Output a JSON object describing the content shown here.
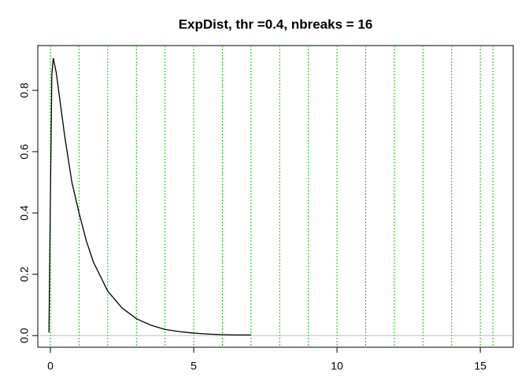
{
  "chart_data": {
    "type": "line",
    "title": "ExpDist, thr =0.4, nbreaks = 16",
    "series": [
      {
        "color": "#000000",
        "x": [
          -0.05,
          0,
          0.05,
          0.1,
          0.2,
          0.3,
          0.5,
          0.75,
          1,
          1.25,
          1.5,
          2,
          2.5,
          3,
          3.5,
          4,
          4.5,
          5,
          5.5,
          6,
          6.5,
          7
        ],
        "values": [
          0.01,
          0.45,
          0.85,
          0.905,
          0.86,
          0.79,
          0.65,
          0.5,
          0.4,
          0.31,
          0.24,
          0.145,
          0.09,
          0.055,
          0.034,
          0.02,
          0.013,
          0.008,
          0.005,
          0.003,
          0.002,
          0.002
        ]
      }
    ],
    "breaks": [
      0,
      1,
      2,
      3,
      4,
      5,
      6,
      7,
      8,
      9,
      10,
      11,
      12,
      13,
      14,
      15,
      15.44
    ],
    "break_color": "#00cc00",
    "hline": 0,
    "hline_color": "#bebebe",
    "xlim": [
      -0.44,
      16.15
    ],
    "ylim": [
      -0.038,
      0.946
    ],
    "xticks": [
      0,
      5,
      10,
      15
    ],
    "yticks": [
      {
        "value": 0,
        "label": "0.0"
      },
      0.2,
      0.4,
      0.6,
      0.8
    ]
  }
}
